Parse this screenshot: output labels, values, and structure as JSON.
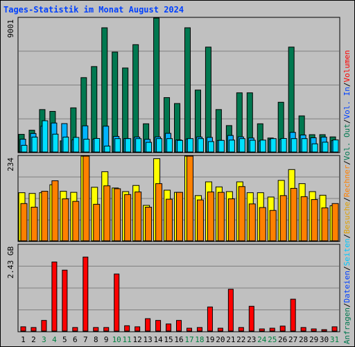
{
  "chart_data": [
    {
      "type": "bar",
      "title": "Tages-Statistik im Monat August 2024",
      "categories": [
        "1",
        "2",
        "3",
        "4",
        "5",
        "6",
        "7",
        "8",
        "9",
        "10",
        "11",
        "12",
        "13",
        "14",
        "15",
        "16",
        "17",
        "18",
        "19",
        "20",
        "21",
        "22",
        "23",
        "24",
        "25",
        "26",
        "27",
        "28",
        "29",
        "30",
        "31"
      ],
      "weekend_days": [
        "3",
        "4",
        "10",
        "11",
        "17",
        "18",
        "24",
        "25",
        "31"
      ],
      "ymax_label": "9001",
      "ylim": [
        0,
        9001
      ],
      "series": [
        {
          "name": "Anfragen",
          "color": "#007850",
          "values": [
            1186,
            1463,
            2851,
            2730,
            751,
            2967,
            4998,
            5742,
            8348,
            6715,
            5646,
            7214,
            1897,
            9001,
            3656,
            3258,
            8348,
            4162,
            7050,
            2851,
            1776,
            3977,
            3977,
            1897,
            940,
            3344,
            7050,
            2426,
            1165,
            1165,
            1015
          ]
        },
        {
          "name": "Dateien",
          "color": "#00b4ff",
          "values": [
            860,
            1243,
            1734,
            1948,
            1908,
            818,
            1757,
            868,
            1734,
            1048,
            906,
            1004,
            848,
            1013,
            1254,
            811,
            877,
            1008,
            980,
            778,
            1112,
            1017,
            939,
            740,
            849,
            851,
            1318,
            1141,
            955,
            1000,
            766
          ]
        },
        {
          "name": "Seiten",
          "color": "#00e0ff",
          "values": [
            450,
            1000,
            2100,
            1200,
            1000,
            980,
            860,
            910,
            400,
            900,
            900,
            900,
            650,
            900,
            900,
            780,
            900,
            900,
            700,
            780,
            800,
            900,
            790,
            800,
            900,
            910,
            900,
            900,
            550,
            660,
            810
          ]
        }
      ]
    },
    {
      "type": "bar",
      "ymax_label": "234",
      "ylim": [
        0,
        234
      ],
      "series": [
        {
          "name": "Besuche",
          "color": "#ffff00",
          "values": [
            133,
            131,
            133,
            155,
            137,
            134,
            234,
            148,
            191,
            146,
            136,
            153,
            98,
            227,
            140,
            134,
            234,
            125,
            163,
            149,
            136,
            163,
            133,
            133,
            121,
            167,
            197,
            158,
            136,
            126,
            97
          ]
        },
        {
          "name": "Rechner",
          "color": "#ff8000",
          "values": [
            103,
            93,
            137,
            166,
            116,
            109,
            234,
            101,
            152,
            144,
            128,
            135,
            93,
            158,
            115,
            134,
            234,
            113,
            135,
            134,
            116,
            150,
            102,
            92,
            84,
            125,
            145,
            122,
            114,
            91,
            103
          ]
        }
      ]
    },
    {
      "type": "bar",
      "ymax_label": "2.43 GB",
      "ylim": [
        0,
        2.43
      ],
      "series": [
        {
          "name": "Volumen",
          "color": "#ff0000",
          "values": [
            0.12,
            0.1,
            0.3,
            1.95,
            1.72,
            0.1,
            2.09,
            0.1,
            0.1,
            1.61,
            0.15,
            0.12,
            0.35,
            0.3,
            0.2,
            0.3,
            0.08,
            0.1,
            0.68,
            0.08,
            1.18,
            0.1,
            0.7,
            0.06,
            0.08,
            0.14,
            0.9,
            0.1,
            0.06,
            0.04,
            0.12
          ]
        }
      ]
    }
  ],
  "right_legend": [
    {
      "text": "Anfragen",
      "color": "#007850"
    },
    {
      "text": "/",
      "color": "#000000"
    },
    {
      "text": "Dateien",
      "color": "#0040ff"
    },
    {
      "text": "/",
      "color": "#000000"
    },
    {
      "text": "Seiten",
      "color": "#00c8ff"
    },
    {
      "text": "/",
      "color": "#000000"
    },
    {
      "text": "Besuche",
      "color": "#e0a000"
    },
    {
      "text": "/",
      "color": "#000000"
    },
    {
      "text": "Rechner",
      "color": "#ff8000"
    },
    {
      "text": "/",
      "color": "#000000"
    },
    {
      "text": "Vol. Out",
      "color": "#007850"
    },
    {
      "text": "/",
      "color": "#000000"
    },
    {
      "text": "Vol. In",
      "color": "#0040ff"
    },
    {
      "text": "/",
      "color": "#000000"
    },
    {
      "text": "Volumen",
      "color": "#ff0000"
    }
  ],
  "colors": {
    "background": "#c0c0c0",
    "weekday_label": "#000000",
    "weekend_label": "#008040",
    "grid": "#808080"
  }
}
